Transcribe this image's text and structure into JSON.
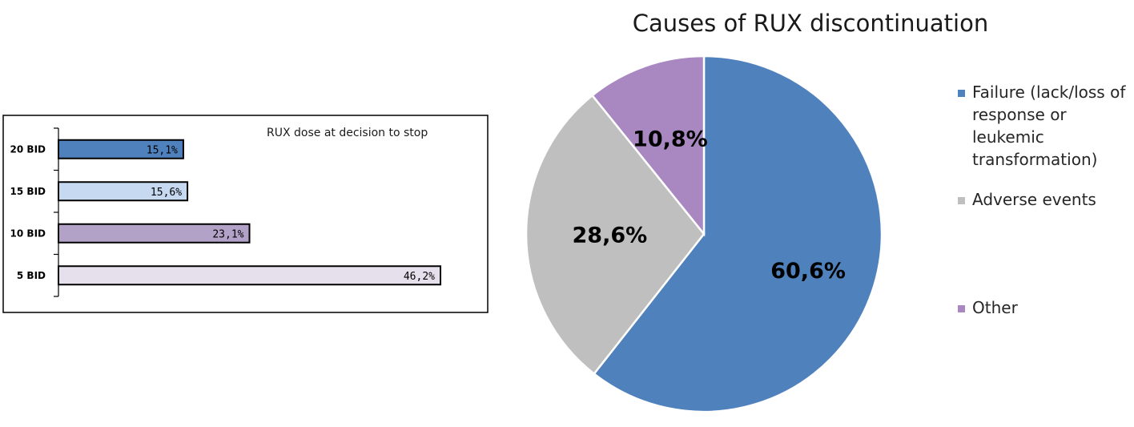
{
  "chart_data": [
    {
      "type": "bar",
      "orientation": "horizontal",
      "title": "RUX dose at decision to stop",
      "categories": [
        "20 BID",
        "15 BID",
        "10 BID",
        "5 BID"
      ],
      "values": [
        15.1,
        15.6,
        23.1,
        46.2
      ],
      "data_labels": [
        "15,1%",
        "15,6%",
        "23,1%",
        "46,2%"
      ],
      "colors": [
        "#4f81bd",
        "#c6d9f1",
        "#b3a2c7",
        "#e6e0ec"
      ],
      "xlim": [
        0,
        50
      ],
      "grid": false,
      "legend": "none"
    },
    {
      "type": "pie",
      "title": "Causes of RUX discontinuation",
      "labels": [
        "Failure (lack/loss of response or leukemic transformation)",
        "Adverse events",
        "Other"
      ],
      "values": [
        60.6,
        28.6,
        10.8
      ],
      "data_labels": [
        "60,6%",
        "28,6%",
        "10,8%"
      ],
      "colors": [
        "#4f81bd",
        "#bfbfbf",
        "#a987c1"
      ],
      "legend": "right"
    }
  ]
}
